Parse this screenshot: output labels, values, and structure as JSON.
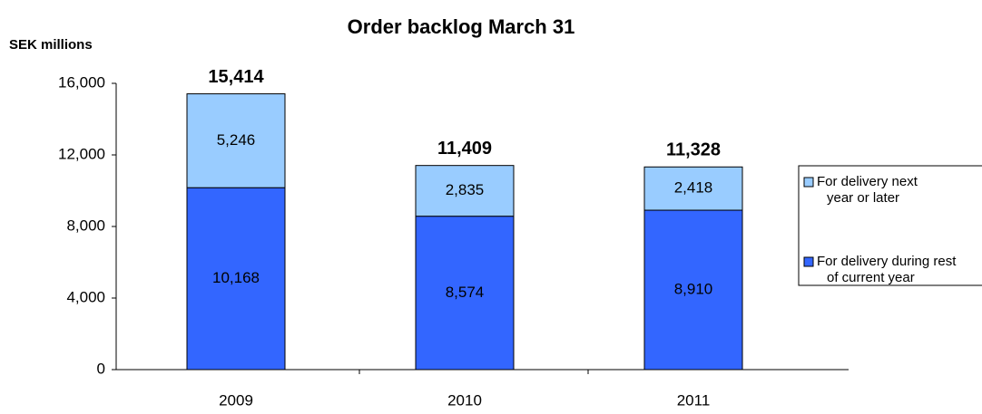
{
  "chart_data": {
    "type": "stacked_bar",
    "title": "Order backlog March 31",
    "y_label": "SEK millions",
    "categories": [
      "2009",
      "2010",
      "2011"
    ],
    "series": [
      {
        "name": "For delivery during rest of current year",
        "color": "#3366ff",
        "values": [
          10168,
          8574,
          8910
        ],
        "value_labels": [
          "10,168",
          "8,574",
          "8,910"
        ]
      },
      {
        "name": "For delivery next year or later",
        "color": "#99ccff",
        "values": [
          5246,
          2835,
          2418
        ],
        "value_labels": [
          "5,246",
          "2,835",
          "2,418"
        ]
      }
    ],
    "totals": {
      "values": [
        15414,
        11409,
        11328
      ],
      "value_labels": [
        "15,414",
        "11,409",
        "11,328"
      ]
    },
    "ylim": [
      0,
      16000
    ],
    "yticks": [
      0,
      {
        "value": 4000,
        "label": "4,000"
      },
      {
        "value": 8000,
        "label": "8,000"
      },
      {
        "value": 12000,
        "label": "12,000"
      },
      {
        "value": 16000,
        "label": "16,000"
      }
    ],
    "legend": "right"
  }
}
